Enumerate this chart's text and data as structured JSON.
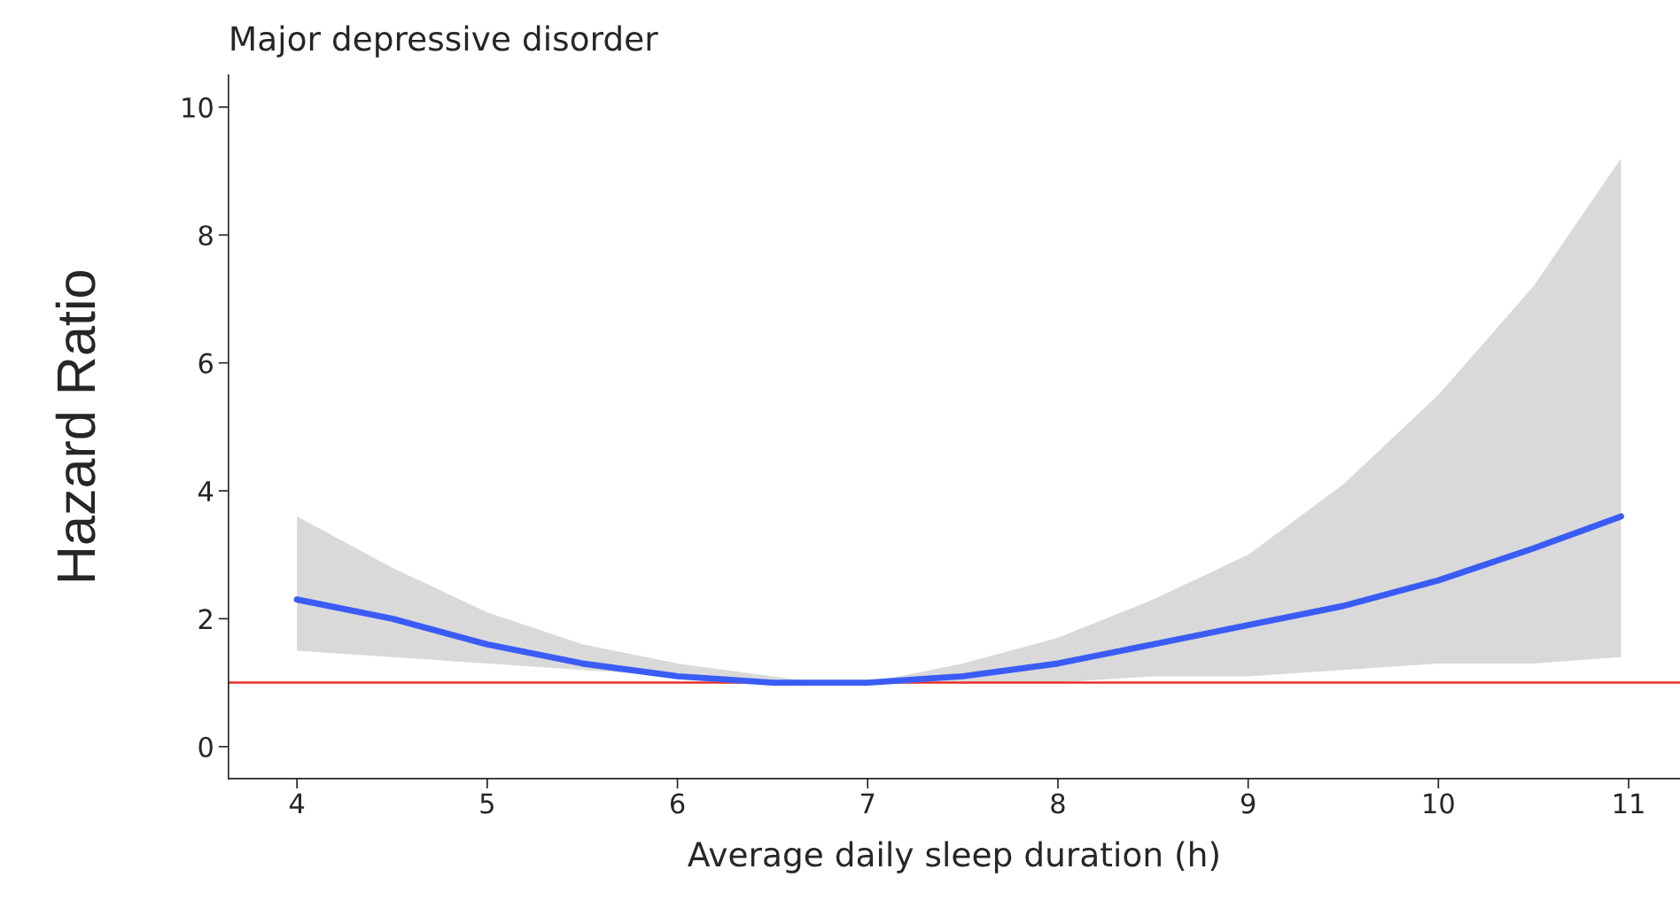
{
  "chart_data": {
    "type": "line",
    "title": "Major depressive disorder",
    "xlabel": "Average daily sleep duration (h)",
    "ylabel": "Hazard Ratio",
    "x": [
      4,
      4.5,
      5,
      5.5,
      6,
      6.5,
      6.75,
      7,
      7.5,
      8,
      8.5,
      9,
      9.5,
      10,
      10.5,
      10.96
    ],
    "series": [
      {
        "color": "#3a5cf5",
        "values": [
          2.3,
          2.0,
          1.6,
          1.3,
          1.1,
          1.0,
          1.0,
          1.0,
          1.1,
          1.3,
          1.6,
          1.9,
          2.2,
          2.6,
          3.1,
          3.6
        ],
        "lower": [
          1.5,
          1.4,
          1.3,
          1.2,
          1.1,
          1.0,
          1.0,
          1.0,
          1.0,
          1.0,
          1.1,
          1.1,
          1.2,
          1.3,
          1.3,
          1.4
        ],
        "upper": [
          3.6,
          2.8,
          2.1,
          1.6,
          1.3,
          1.1,
          1.0,
          1.0,
          1.3,
          1.7,
          2.3,
          3.0,
          4.1,
          5.5,
          7.2,
          9.2
        ]
      }
    ],
    "ref_lines": [
      {
        "axis": "y",
        "value": 1,
        "color": "#e8302a"
      }
    ],
    "xlim": [
      3.64,
      11.27
    ],
    "ylim": [
      -0.5,
      10.5
    ],
    "xticks": [
      4,
      5,
      6,
      7,
      8,
      9,
      10,
      11
    ],
    "yticks": [
      0,
      2,
      4,
      6,
      8,
      10
    ],
    "grid": false,
    "legend": false,
    "marker": "none",
    "line_style": "solid"
  }
}
